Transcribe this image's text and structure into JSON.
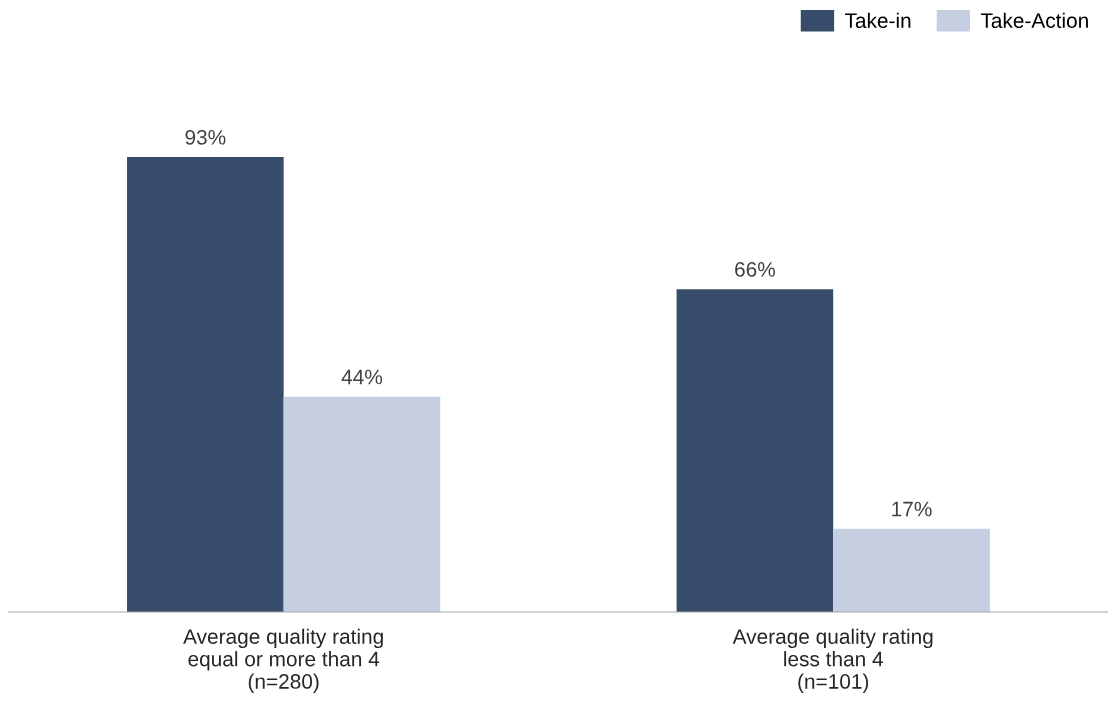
{
  "chart_data": {
    "type": "bar",
    "categories": [
      "Average quality rating\nequal or more than 4\n(n=280)",
      "Average quality rating\nless than 4\n(n=101)"
    ],
    "series": [
      {
        "name": "Take-in",
        "color": "#374c6b",
        "values": [
          93,
          66
        ],
        "value_labels": [
          "93%",
          "66%"
        ]
      },
      {
        "name": "Take-Action",
        "color": "#c5cfe1",
        "values": [
          44,
          17
        ],
        "value_labels": [
          "44%",
          "17%"
        ]
      }
    ],
    "legend": "top right",
    "grid": false
  }
}
